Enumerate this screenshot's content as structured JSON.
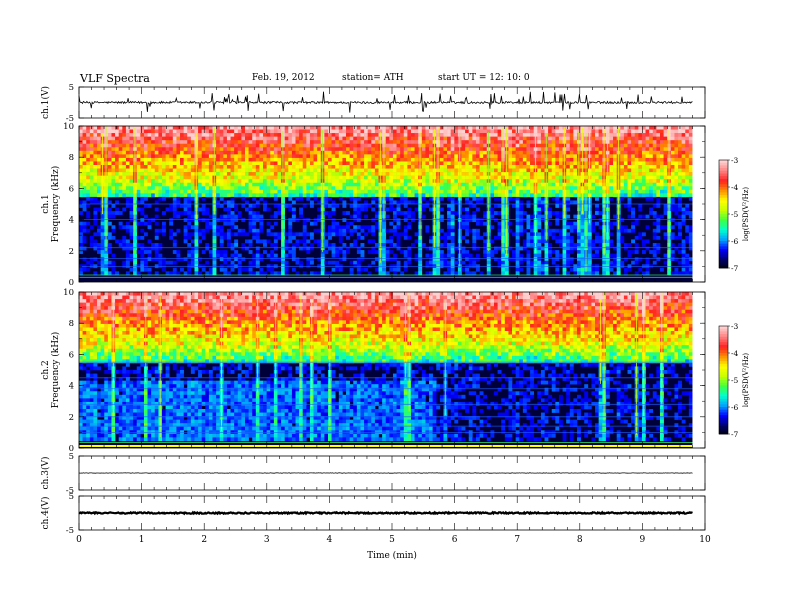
{
  "header": {
    "title": "VLF  Spectra",
    "date": "Feb. 19, 2012",
    "station": "station= ATH",
    "start": "start  UT  =    12: 10: 0"
  },
  "chart_data": {
    "type": "heatmap",
    "xlabel": "Time  (min)",
    "x_ticks": [
      "0",
      "1",
      "2",
      "3",
      "4",
      "5",
      "6",
      "7",
      "8",
      "9",
      "10"
    ],
    "xlim": [
      0,
      10
    ],
    "data_end_min": 9.8,
    "panels": [
      {
        "id": "ch1-wave",
        "kind": "waveform",
        "ylabel": "ch.1(V)",
        "y_ticks": [
          "5",
          "-5"
        ],
        "ylim": [
          -5,
          5
        ],
        "baseline": 0,
        "noise": 0.35,
        "spikes": 0.9
      },
      {
        "id": "ch1-spec",
        "kind": "spectrogram",
        "channel": "ch.1",
        "ylabel": "Frequency  (kHz)",
        "y_ticks": [
          "10",
          "8",
          "6",
          "4",
          "2",
          "0"
        ],
        "ylim": [
          0,
          10
        ]
      },
      {
        "id": "ch2-spec",
        "kind": "spectrogram",
        "channel": "ch.2",
        "ylabel": "Frequency  (kHz)",
        "y_ticks": [
          "10",
          "8",
          "6",
          "4",
          "2",
          "0"
        ],
        "ylim": [
          0,
          10
        ]
      },
      {
        "id": "ch3-wave",
        "kind": "waveform",
        "ylabel": "ch.3(V)",
        "y_ticks": [
          "5",
          "-5"
        ],
        "ylim": [
          -5,
          5
        ],
        "baseline": 0,
        "noise": 0.06,
        "spikes": 0
      },
      {
        "id": "ch4-wave",
        "kind": "waveform",
        "ylabel": "ch.4(V)",
        "y_ticks": [
          "5",
          "-5"
        ],
        "ylim": [
          -5,
          5
        ],
        "baseline": 0,
        "noise": 0.2,
        "spikes": 0
      }
    ],
    "colorbar": {
      "label": "log(PSD(V²/Hz)",
      "ticks": [
        "-3",
        "-4",
        "-5",
        "-6",
        "-7"
      ],
      "range": [
        -7,
        -3
      ],
      "colors": [
        "#000000",
        "#000070",
        "#0000ff",
        "#00a0ff",
        "#00ffd0",
        "#40ff40",
        "#c8ff00",
        "#ffff00",
        "#ff9000",
        "#ff2020",
        "#ff8080",
        "#ffd0d0"
      ]
    }
  }
}
